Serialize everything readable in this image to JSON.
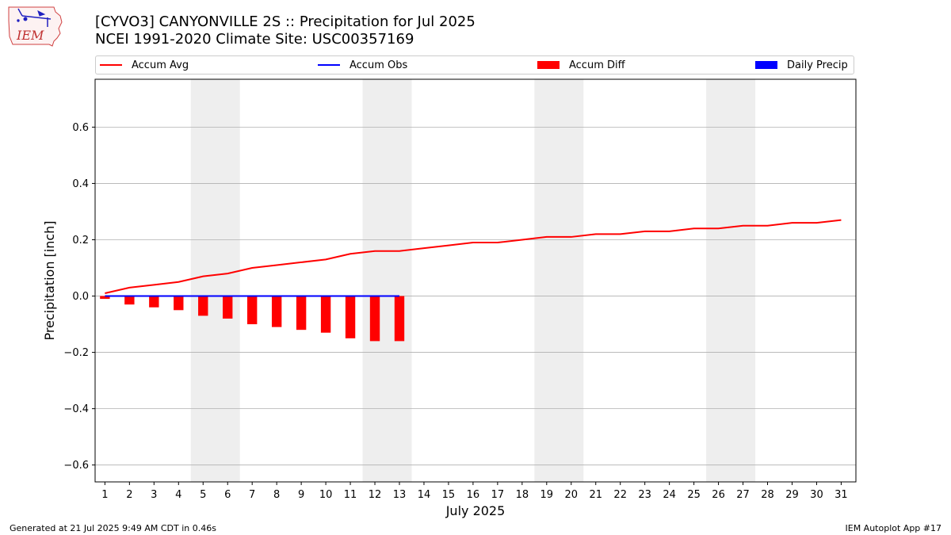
{
  "header": {
    "title_line1": "[CYVO3] CANYONVILLE 2S :: Precipitation for Jul 2025",
    "title_line2": "NCEI 1991-2020 Climate Site: USC00357169"
  },
  "logo": {
    "text": "IEM",
    "icon": "iem-iowa-state-logo"
  },
  "legend": [
    {
      "label": "Accum Avg",
      "kind": "line",
      "color": "#ff0000"
    },
    {
      "label": "Accum Obs",
      "kind": "line",
      "color": "#0000ff"
    },
    {
      "label": "Accum Diff",
      "kind": "box",
      "color": "#ff0000"
    },
    {
      "label": "Daily Precip",
      "kind": "box",
      "color": "#0000ff"
    }
  ],
  "footer": {
    "left": "Generated at 21 Jul 2025 9:49 AM CDT in 0.46s",
    "right": "IEM Autoplot App #17"
  },
  "chart_data": {
    "type": "bar",
    "xlabel": "July 2025",
    "ylabel": "Precipitation [inch]",
    "ylim": [
      -0.66,
      0.77
    ],
    "xlim": [
      0.6,
      31.6
    ],
    "yticks": [
      -0.6,
      -0.4,
      -0.2,
      0.0,
      0.2,
      0.4,
      0.6
    ],
    "ytick_labels": [
      "−0.6",
      "−0.4",
      "−0.2",
      "0.0",
      "0.2",
      "0.4",
      "0.6"
    ],
    "grid": true,
    "weekend_shading_days": [
      [
        5,
        6
      ],
      [
        12,
        13
      ],
      [
        19,
        20
      ],
      [
        26,
        27
      ]
    ],
    "categories": [
      1,
      2,
      3,
      4,
      5,
      6,
      7,
      8,
      9,
      10,
      11,
      12,
      13,
      14,
      15,
      16,
      17,
      18,
      19,
      20,
      21,
      22,
      23,
      24,
      25,
      26,
      27,
      28,
      29,
      30,
      31
    ],
    "series": [
      {
        "name": "Accum Avg",
        "type": "line",
        "color": "#ff0000",
        "x": [
          1,
          2,
          3,
          4,
          5,
          6,
          7,
          8,
          9,
          10,
          11,
          12,
          13,
          14,
          15,
          16,
          17,
          18,
          19,
          20,
          21,
          22,
          23,
          24,
          25,
          26,
          27,
          28,
          29,
          30,
          31
        ],
        "values": [
          0.01,
          0.03,
          0.04,
          0.05,
          0.07,
          0.08,
          0.1,
          0.11,
          0.12,
          0.13,
          0.15,
          0.16,
          0.16,
          0.17,
          0.18,
          0.19,
          0.19,
          0.2,
          0.21,
          0.21,
          0.22,
          0.22,
          0.23,
          0.23,
          0.24,
          0.24,
          0.25,
          0.25,
          0.26,
          0.26,
          0.27
        ]
      },
      {
        "name": "Accum Obs",
        "type": "line",
        "color": "#0000ff",
        "x": [
          1,
          2,
          3,
          4,
          5,
          6,
          7,
          8,
          9,
          10,
          11,
          12,
          13
        ],
        "values": [
          0,
          0,
          0,
          0,
          0,
          0,
          0,
          0,
          0,
          0,
          0,
          0,
          0
        ]
      },
      {
        "name": "Accum Diff",
        "type": "bar",
        "color": "#ff0000",
        "x": [
          1,
          2,
          3,
          4,
          5,
          6,
          7,
          8,
          9,
          10,
          11,
          12,
          13
        ],
        "values": [
          -0.01,
          -0.03,
          -0.04,
          -0.05,
          -0.07,
          -0.08,
          -0.1,
          -0.11,
          -0.12,
          -0.13,
          -0.15,
          -0.16,
          -0.16
        ]
      },
      {
        "name": "Daily Precip",
        "type": "bar",
        "color": "#0000ff",
        "x": [
          1,
          2,
          3,
          4,
          5,
          6,
          7,
          8,
          9,
          10,
          11,
          12,
          13
        ],
        "values": [
          0,
          0,
          0,
          0,
          0,
          0,
          0,
          0,
          0,
          0,
          0,
          0,
          0
        ]
      }
    ]
  }
}
